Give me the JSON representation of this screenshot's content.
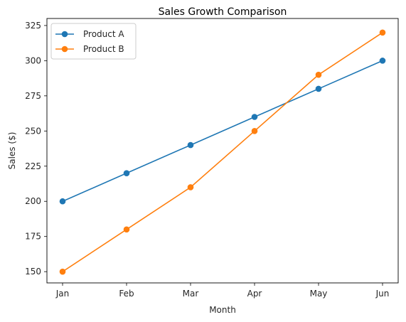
{
  "chart_data": {
    "type": "line",
    "title": "Sales Growth Comparison",
    "xlabel": "Month",
    "ylabel": "Sales ($)",
    "categories": [
      "Jan",
      "Feb",
      "Mar",
      "Apr",
      "May",
      "Jun"
    ],
    "y_ticks": [
      "150",
      "175",
      "200",
      "225",
      "250",
      "275",
      "300",
      "325"
    ],
    "ylim": [
      142,
      330
    ],
    "grid": false,
    "legend_position": "top-left",
    "series": [
      {
        "name": "Product A",
        "color": "#1f77b4",
        "marker": "circle",
        "values": [
          200,
          220,
          240,
          260,
          280,
          300
        ]
      },
      {
        "name": "Product B",
        "color": "#ff7f0e",
        "marker": "circle",
        "values": [
          150,
          180,
          210,
          250,
          290,
          320
        ]
      }
    ]
  }
}
